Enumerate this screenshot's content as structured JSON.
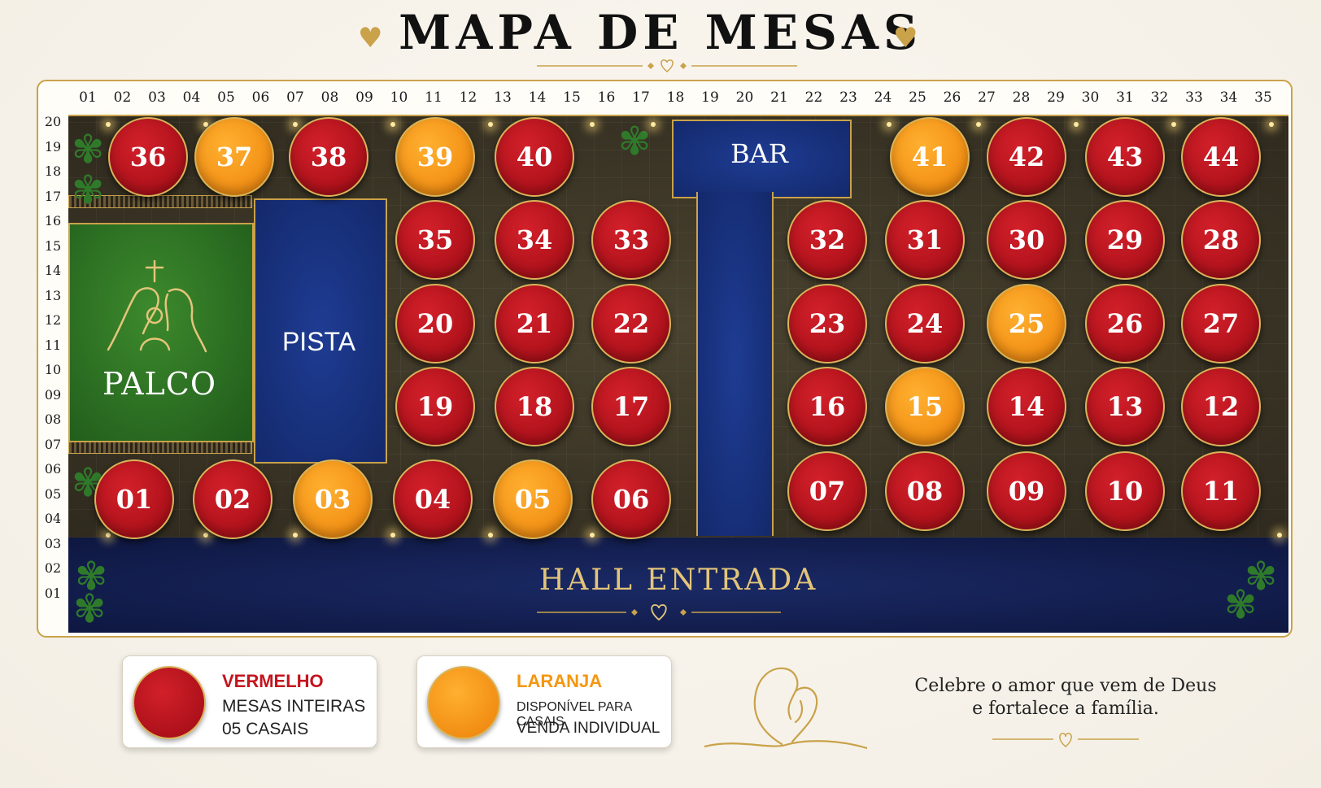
{
  "title": "MAPA DE MESAS",
  "columns": [
    "01",
    "02",
    "03",
    "04",
    "05",
    "06",
    "07",
    "08",
    "09",
    "10",
    "11",
    "12",
    "13",
    "14",
    "15",
    "16",
    "17",
    "18",
    "19",
    "20",
    "21",
    "22",
    "23",
    "24",
    "25",
    "26",
    "27",
    "28",
    "29",
    "30",
    "31",
    "32",
    "33",
    "34",
    "35"
  ],
  "rows": [
    "20",
    "19",
    "18",
    "17",
    "16",
    "15",
    "14",
    "13",
    "12",
    "11",
    "10",
    "09",
    "08",
    "07",
    "06",
    "05",
    "04",
    "03",
    "02",
    "01"
  ],
  "areas": {
    "stage": "PALCO",
    "dance_floor": "PISTA",
    "bar": "BAR",
    "hall": "HALL ENTRADA"
  },
  "tables": [
    {
      "n": "36",
      "status": "vermelho"
    },
    {
      "n": "37",
      "status": "laranja"
    },
    {
      "n": "38",
      "status": "vermelho"
    },
    {
      "n": "39",
      "status": "laranja"
    },
    {
      "n": "40",
      "status": "vermelho"
    },
    {
      "n": "41",
      "status": "laranja"
    },
    {
      "n": "42",
      "status": "vermelho"
    },
    {
      "n": "43",
      "status": "vermelho"
    },
    {
      "n": "44",
      "status": "vermelho"
    },
    {
      "n": "35",
      "status": "vermelho"
    },
    {
      "n": "34",
      "status": "vermelho"
    },
    {
      "n": "33",
      "status": "vermelho"
    },
    {
      "n": "32",
      "status": "vermelho"
    },
    {
      "n": "31",
      "status": "vermelho"
    },
    {
      "n": "30",
      "status": "vermelho"
    },
    {
      "n": "29",
      "status": "vermelho"
    },
    {
      "n": "28",
      "status": "vermelho"
    },
    {
      "n": "20",
      "status": "vermelho"
    },
    {
      "n": "21",
      "status": "vermelho"
    },
    {
      "n": "22",
      "status": "vermelho"
    },
    {
      "n": "23",
      "status": "vermelho"
    },
    {
      "n": "24",
      "status": "vermelho"
    },
    {
      "n": "25",
      "status": "laranja"
    },
    {
      "n": "26",
      "status": "vermelho"
    },
    {
      "n": "27",
      "status": "vermelho"
    },
    {
      "n": "19",
      "status": "vermelho"
    },
    {
      "n": "18",
      "status": "vermelho"
    },
    {
      "n": "17",
      "status": "vermelho"
    },
    {
      "n": "16",
      "status": "vermelho"
    },
    {
      "n": "15",
      "status": "laranja"
    },
    {
      "n": "14",
      "status": "vermelho"
    },
    {
      "n": "13",
      "status": "vermelho"
    },
    {
      "n": "12",
      "status": "vermelho"
    },
    {
      "n": "01",
      "status": "vermelho"
    },
    {
      "n": "02",
      "status": "vermelho"
    },
    {
      "n": "03",
      "status": "laranja"
    },
    {
      "n": "04",
      "status": "vermelho"
    },
    {
      "n": "05",
      "status": "laranja"
    },
    {
      "n": "06",
      "status": "vermelho"
    },
    {
      "n": "07",
      "status": "vermelho"
    },
    {
      "n": "08",
      "status": "vermelho"
    },
    {
      "n": "09",
      "status": "vermelho"
    },
    {
      "n": "10",
      "status": "vermelho"
    },
    {
      "n": "11",
      "status": "vermelho"
    }
  ],
  "legend": {
    "red": {
      "title": "VERMELHO",
      "line1": "MESAS INTEIRAS",
      "line2": "05 CASAIS",
      "color": "#c4141e"
    },
    "orange": {
      "title": "LARANJA",
      "line1": "DISPONÍVEL PARA CASAIS",
      "line2": "VENDA INDIVIDUAL",
      "color": "#f5960f"
    }
  },
  "quote": {
    "line1": "Celebre o amor que vem de Deus",
    "line2": "e fortalece a família."
  },
  "icons": [
    "heart-icon",
    "cross-icon",
    "holy-family-icon",
    "couple-icon",
    "plant-icon"
  ]
}
